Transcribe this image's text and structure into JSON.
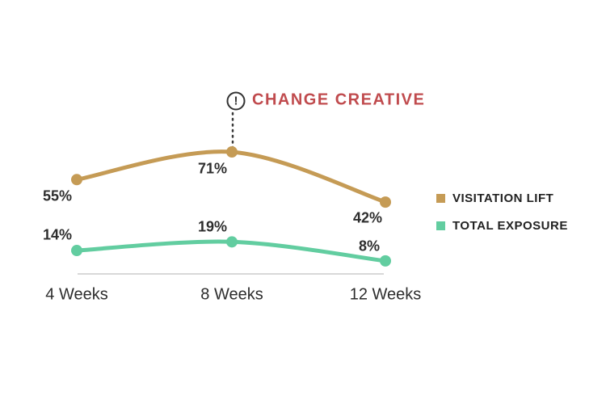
{
  "annotation": {
    "icon": "!",
    "label": "CHANGE CREATIVE",
    "color": "#c04b4e",
    "at_category": "8 Weeks"
  },
  "chart_data": {
    "type": "line",
    "categories": [
      "4 Weeks",
      "8 Weeks",
      "12 Weeks"
    ],
    "series": [
      {
        "name": "VISITATION LIFT",
        "color": "#c59b55",
        "values": [
          55,
          71,
          42
        ],
        "labels": [
          "55%",
          "71%",
          "42%"
        ]
      },
      {
        "name": "TOTAL EXPOSURE",
        "color": "#62cda0",
        "values": [
          14,
          19,
          8
        ],
        "labels": [
          "14%",
          "19%",
          "8%"
        ]
      }
    ],
    "unit": "%",
    "ylim": [
      0,
      100
    ],
    "grid": false,
    "legend_position": "right",
    "annotation": {
      "text": "CHANGE CREATIVE",
      "series": "VISITATION LIFT",
      "at_category": "8 Weeks"
    }
  }
}
